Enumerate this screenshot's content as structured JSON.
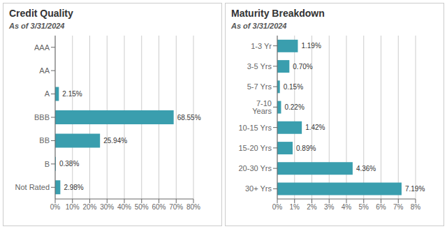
{
  "chart_data": [
    {
      "type": "bar",
      "orientation": "horizontal",
      "title": "Credit Quality",
      "subtitle": "As of 3/31/2024",
      "categories": [
        "AAA",
        "AA",
        "A",
        "BBB",
        "BB",
        "B",
        "Not Rated"
      ],
      "values": [
        0.0,
        0.0,
        2.15,
        68.55,
        25.94,
        0.38,
        2.98
      ],
      "value_labels": [
        null,
        null,
        "2.15%",
        "68.55%",
        "25.94%",
        "0.38%",
        "2.98%"
      ],
      "data_labels": true,
      "color": "#3a9eae",
      "grid": true,
      "xlim": [
        0,
        80
      ],
      "xticks": [
        {
          "value": 0,
          "label": "0%"
        },
        {
          "value": 10,
          "label": "10%"
        },
        {
          "value": 20,
          "label": "20%"
        },
        {
          "value": 30,
          "label": "30%"
        },
        {
          "value": 40,
          "label": "40%"
        },
        {
          "value": 50,
          "label": "50%"
        },
        {
          "value": 60,
          "label": "60%"
        },
        {
          "value": 70,
          "label": "70%"
        },
        {
          "value": 80,
          "label": "80%"
        }
      ]
    },
    {
      "type": "bar",
      "orientation": "horizontal",
      "title": "Maturity Breakdown",
      "subtitle": "As of 3/31/2024",
      "categories": [
        "1-3 Yr",
        "3-5 Yrs",
        "5-7 Yrs",
        "7-10 Years",
        "10-15 Yrs",
        "15-20 Yrs",
        "20-30 Yrs",
        "30+ Yrs"
      ],
      "values": [
        1.19,
        0.7,
        0.15,
        0.22,
        1.42,
        0.89,
        4.36,
        7.19
      ],
      "value_labels": [
        "1.19%",
        "0.70%",
        "0.15%",
        "0.22%",
        "1.42%",
        "0.89%",
        "4.36%",
        "7.19%"
      ],
      "data_labels": true,
      "color": "#3a9eae",
      "grid": true,
      "xlim": [
        0,
        8
      ],
      "xticks": [
        {
          "value": 0,
          "label": "0%"
        },
        {
          "value": 1,
          "label": "1%"
        },
        {
          "value": 2,
          "label": "2%"
        },
        {
          "value": 3,
          "label": "3%"
        },
        {
          "value": 4,
          "label": "4%"
        },
        {
          "value": 5,
          "label": "5%"
        },
        {
          "value": 6,
          "label": "6%"
        },
        {
          "value": 7,
          "label": "7%"
        },
        {
          "value": 8,
          "label": "8%"
        }
      ]
    }
  ]
}
